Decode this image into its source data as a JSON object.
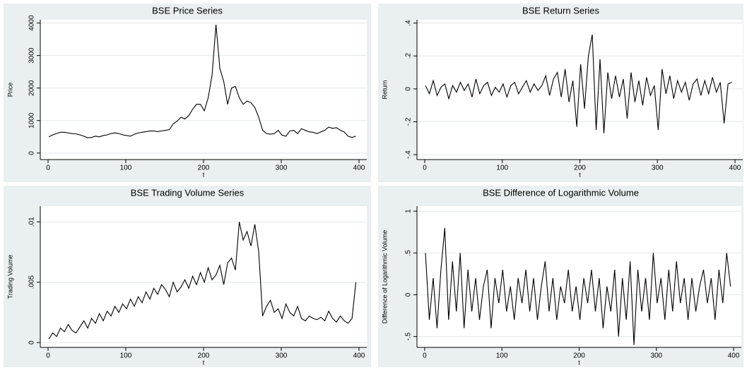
{
  "chart_data": [
    {
      "type": "line",
      "title": "BSE Price Series",
      "xlabel": "t",
      "ylabel": "Price",
      "color": "#000000",
      "grid": true,
      "xlim": [
        -10,
        410
      ],
      "ylim": [
        -200,
        4100
      ],
      "xticks": [
        0,
        100,
        200,
        300,
        400
      ],
      "yticks": [
        0,
        1000,
        2000,
        3000,
        4000
      ],
      "x": [
        1,
        6,
        11,
        16,
        21,
        26,
        31,
        36,
        41,
        46,
        51,
        56,
        61,
        66,
        71,
        76,
        81,
        86,
        91,
        96,
        101,
        106,
        111,
        116,
        121,
        126,
        131,
        136,
        141,
        146,
        151,
        156,
        161,
        166,
        171,
        176,
        181,
        186,
        191,
        196,
        201,
        206,
        211,
        216,
        221,
        226,
        231,
        236,
        241,
        246,
        251,
        256,
        261,
        266,
        271,
        276,
        281,
        286,
        291,
        296,
        301,
        306,
        311,
        316,
        321,
        326,
        331,
        336,
        341,
        346,
        351,
        356,
        361,
        366,
        371,
        376,
        381,
        386,
        391,
        396
      ],
      "values": [
        500,
        560,
        600,
        640,
        640,
        620,
        600,
        590,
        560,
        520,
        470,
        480,
        520,
        500,
        540,
        560,
        600,
        620,
        600,
        560,
        540,
        520,
        580,
        620,
        640,
        660,
        680,
        680,
        660,
        680,
        700,
        720,
        900,
        980,
        1100,
        1050,
        1150,
        1350,
        1500,
        1500,
        1300,
        1700,
        2400,
        3950,
        2600,
        2200,
        1500,
        2000,
        2050,
        1700,
        1500,
        1600,
        1550,
        1400,
        1100,
        700,
        600,
        580,
        600,
        700,
        550,
        520,
        680,
        700,
        600,
        750,
        700,
        650,
        640,
        600,
        650,
        700,
        800,
        760,
        780,
        700,
        650,
        520,
        480,
        520
      ]
    },
    {
      "type": "line",
      "title": "BSE Return Series",
      "xlabel": "t",
      "ylabel": "Return",
      "color": "#000000",
      "grid": true,
      "xlim": [
        -10,
        410
      ],
      "ylim": [
        -0.43,
        0.42
      ],
      "xticks": [
        0,
        100,
        200,
        300,
        400
      ],
      "yticks": [
        {
          "value": -0.4,
          "label": "-.4"
        },
        {
          "value": -0.2,
          "label": "-.2"
        },
        0,
        {
          "value": 0.2,
          "label": ".2"
        },
        {
          "value": 0.4,
          "label": ".4"
        }
      ],
      "x": [
        1,
        6,
        11,
        16,
        21,
        26,
        31,
        36,
        41,
        46,
        51,
        56,
        61,
        66,
        71,
        76,
        81,
        86,
        91,
        96,
        101,
        106,
        111,
        116,
        121,
        126,
        131,
        136,
        141,
        146,
        151,
        156,
        161,
        166,
        171,
        176,
        181,
        186,
        191,
        196,
        201,
        206,
        211,
        216,
        221,
        226,
        231,
        236,
        241,
        246,
        251,
        256,
        261,
        266,
        271,
        276,
        281,
        286,
        291,
        296,
        301,
        306,
        311,
        316,
        321,
        326,
        331,
        336,
        341,
        346,
        351,
        356,
        361,
        366,
        371,
        376,
        381,
        386,
        391,
        396
      ],
      "values": [
        0.02,
        -0.03,
        0.05,
        -0.04,
        0.01,
        0.03,
        -0.06,
        0.02,
        -0.02,
        0.04,
        -0.01,
        0.03,
        -0.05,
        0.06,
        -0.03,
        0.02,
        0.04,
        -0.04,
        0.01,
        -0.02,
        0.03,
        -0.05,
        0.02,
        0.04,
        -0.03,
        0.01,
        0.05,
        -0.02,
        0.03,
        -0.01,
        0.02,
        0.08,
        -0.04,
        0.06,
        0.1,
        -0.05,
        0.12,
        -0.08,
        0.05,
        -0.23,
        0.15,
        -0.12,
        0.2,
        0.33,
        -0.25,
        0.18,
        -0.27,
        0.1,
        -0.06,
        0.08,
        -0.05,
        0.06,
        -0.18,
        0.1,
        -0.08,
        0.05,
        -0.1,
        0.07,
        -0.04,
        0.02,
        -0.25,
        0.12,
        -0.03,
        0.08,
        -0.06,
        0.05,
        -0.02,
        0.04,
        -0.07,
        0.03,
        0.06,
        -0.04,
        0.05,
        -0.03,
        0.07,
        -0.02,
        0.04,
        -0.21,
        0.03,
        0.04
      ]
    },
    {
      "type": "line",
      "title": "BSE Trading Volume Series",
      "xlabel": "t",
      "ylabel": "Trading Volume",
      "color": "#000000",
      "grid": true,
      "xlim": [
        -10,
        410
      ],
      "ylim": [
        -0.0004,
        0.0113
      ],
      "xticks": [
        0,
        100,
        200,
        300,
        400
      ],
      "yticks": [
        0,
        {
          "value": 0.005,
          "label": ".005"
        },
        {
          "value": 0.01,
          "label": ".01"
        }
      ],
      "x": [
        1,
        6,
        11,
        16,
        21,
        26,
        31,
        36,
        41,
        46,
        51,
        56,
        61,
        66,
        71,
        76,
        81,
        86,
        91,
        96,
        101,
        106,
        111,
        116,
        121,
        126,
        131,
        136,
        141,
        146,
        151,
        156,
        161,
        166,
        171,
        176,
        181,
        186,
        191,
        196,
        201,
        206,
        211,
        216,
        221,
        226,
        231,
        236,
        241,
        246,
        251,
        256,
        261,
        266,
        271,
        276,
        281,
        286,
        291,
        296,
        301,
        306,
        311,
        316,
        321,
        326,
        331,
        336,
        341,
        346,
        351,
        356,
        361,
        366,
        371,
        376,
        381,
        386,
        391,
        396
      ],
      "values": [
        0.0003,
        0.0008,
        0.0005,
        0.0012,
        0.0009,
        0.0015,
        0.001,
        0.0008,
        0.0013,
        0.0018,
        0.0012,
        0.002,
        0.0016,
        0.0024,
        0.0018,
        0.0026,
        0.0022,
        0.003,
        0.0025,
        0.0032,
        0.0028,
        0.0036,
        0.003,
        0.0038,
        0.0033,
        0.0042,
        0.0036,
        0.0045,
        0.004,
        0.0048,
        0.0044,
        0.0038,
        0.005,
        0.0042,
        0.0046,
        0.0052,
        0.0045,
        0.0055,
        0.0048,
        0.0058,
        0.005,
        0.0062,
        0.0052,
        0.0056,
        0.0064,
        0.0048,
        0.0066,
        0.007,
        0.006,
        0.01,
        0.0085,
        0.0092,
        0.008,
        0.0098,
        0.0075,
        0.0022,
        0.003,
        0.0035,
        0.0025,
        0.0028,
        0.002,
        0.0032,
        0.0025,
        0.0022,
        0.003,
        0.002,
        0.0018,
        0.0022,
        0.002,
        0.0019,
        0.0021,
        0.0018,
        0.0026,
        0.002,
        0.0017,
        0.0022,
        0.0018,
        0.0016,
        0.002,
        0.005
      ]
    },
    {
      "type": "line",
      "title": "BSE Difference of Logarithmic  Volume",
      "xlabel": "t",
      "ylabel": "Difference of Logarithmic Volume",
      "color": "#000000",
      "grid": true,
      "xlim": [
        -10,
        410
      ],
      "ylim": [
        -0.63,
        1.06
      ],
      "xticks": [
        0,
        100,
        200,
        300,
        400
      ],
      "yticks": [
        {
          "value": -0.5,
          "label": "-.5"
        },
        0,
        {
          "value": 0.5,
          "label": ".5"
        },
        1
      ],
      "x": [
        1,
        6,
        11,
        16,
        21,
        26,
        31,
        36,
        41,
        46,
        51,
        56,
        61,
        66,
        71,
        76,
        81,
        86,
        91,
        96,
        101,
        106,
        111,
        116,
        121,
        126,
        131,
        136,
        141,
        146,
        151,
        156,
        161,
        166,
        171,
        176,
        181,
        186,
        191,
        196,
        201,
        206,
        211,
        216,
        221,
        226,
        231,
        236,
        241,
        246,
        251,
        256,
        261,
        266,
        271,
        276,
        281,
        286,
        291,
        296,
        301,
        306,
        311,
        316,
        321,
        326,
        331,
        336,
        341,
        346,
        351,
        356,
        361,
        366,
        371,
        376,
        381,
        386,
        391,
        396
      ],
      "values": [
        0.5,
        -0.3,
        0.2,
        -0.4,
        0.3,
        0.8,
        -0.3,
        0.4,
        -0.2,
        0.5,
        -0.4,
        0.3,
        -0.2,
        0.2,
        -0.3,
        0.1,
        0.3,
        -0.4,
        0.2,
        -0.1,
        0.3,
        -0.2,
        0.1,
        -0.3,
        0.2,
        -0.1,
        0.3,
        -0.2,
        0.2,
        -0.3,
        0.1,
        0.4,
        -0.2,
        0.2,
        -0.3,
        0.1,
        -0.1,
        0.3,
        -0.2,
        0.1,
        -0.3,
        0.2,
        -0.1,
        0.3,
        -0.2,
        0.2,
        -0.4,
        0.1,
        -0.2,
        0.3,
        -0.5,
        0.2,
        -0.3,
        0.4,
        -0.6,
        0.3,
        -0.2,
        0.2,
        -0.3,
        0.5,
        -0.1,
        0.2,
        -0.3,
        0.3,
        -0.2,
        0.4,
        -0.1,
        0.2,
        -0.3,
        0.2,
        -0.2,
        0.1,
        0.3,
        -0.1,
        0.2,
        -0.3,
        0.3,
        -0.1,
        0.5,
        0.1
      ]
    }
  ]
}
